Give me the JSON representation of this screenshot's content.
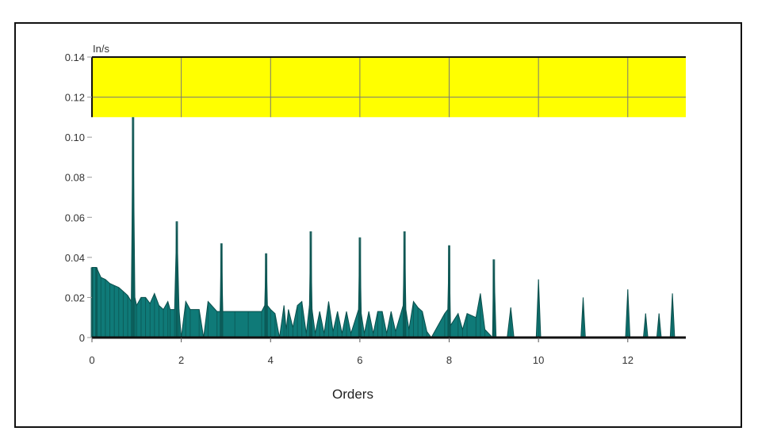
{
  "chart_data": {
    "type": "area",
    "unit_label": "In/s",
    "xlabel": "Orders",
    "ylabel": "",
    "xlim": [
      0,
      13.3
    ],
    "ylim": [
      0,
      0.14
    ],
    "xticks": [
      "0",
      "2",
      "4",
      "6",
      "8",
      "10",
      "12"
    ],
    "yticks": [
      "0",
      "0.02",
      "0.04",
      "0.06",
      "0.08",
      "0.10",
      "0.12",
      "0.14"
    ],
    "grid": true,
    "alarm_band": {
      "from": 0.11,
      "to": 0.14,
      "color": "#ffff00"
    },
    "series_color": "#0f7a78",
    "points": [
      [
        0,
        0.035
      ],
      [
        0.1,
        0.035
      ],
      [
        0.2,
        0.03
      ],
      [
        0.3,
        0.029
      ],
      [
        0.4,
        0.027
      ],
      [
        0.5,
        0.026
      ],
      [
        0.6,
        0.025
      ],
      [
        0.7,
        0.023
      ],
      [
        0.8,
        0.021
      ],
      [
        0.88,
        0.018
      ],
      [
        0.92,
        0.11
      ],
      [
        0.96,
        0.02
      ],
      [
        1.0,
        0.016
      ],
      [
        1.1,
        0.02
      ],
      [
        1.2,
        0.02
      ],
      [
        1.3,
        0.017
      ],
      [
        1.4,
        0.022
      ],
      [
        1.5,
        0.016
      ],
      [
        1.6,
        0.014
      ],
      [
        1.7,
        0.018
      ],
      [
        1.75,
        0.014
      ],
      [
        1.85,
        0.014
      ],
      [
        1.9,
        0.058
      ],
      [
        1.95,
        0.014
      ],
      [
        2.0,
        0.0
      ],
      [
        2.1,
        0.018
      ],
      [
        2.2,
        0.014
      ],
      [
        2.4,
        0.014
      ],
      [
        2.5,
        0.0
      ],
      [
        2.6,
        0.018
      ],
      [
        2.8,
        0.013
      ],
      [
        2.87,
        0.013
      ],
      [
        2.9,
        0.047
      ],
      [
        2.93,
        0.013
      ],
      [
        3.2,
        0.013
      ],
      [
        3.5,
        0.013
      ],
      [
        3.8,
        0.013
      ],
      [
        3.87,
        0.016
      ],
      [
        3.9,
        0.042
      ],
      [
        3.93,
        0.016
      ],
      [
        4.0,
        0.014
      ],
      [
        4.1,
        0.012
      ],
      [
        4.2,
        0.0
      ],
      [
        4.3,
        0.016
      ],
      [
        4.35,
        0.004
      ],
      [
        4.4,
        0.014
      ],
      [
        4.5,
        0.005
      ],
      [
        4.6,
        0.016
      ],
      [
        4.7,
        0.018
      ],
      [
        4.8,
        0.002
      ],
      [
        4.87,
        0.016
      ],
      [
        4.9,
        0.053
      ],
      [
        4.93,
        0.014
      ],
      [
        5.0,
        0.002
      ],
      [
        5.1,
        0.013
      ],
      [
        5.2,
        0.002
      ],
      [
        5.3,
        0.018
      ],
      [
        5.4,
        0.003
      ],
      [
        5.5,
        0.013
      ],
      [
        5.6,
        0.002
      ],
      [
        5.7,
        0.013
      ],
      [
        5.8,
        0.002
      ],
      [
        5.97,
        0.014
      ],
      [
        6.0,
        0.05
      ],
      [
        6.03,
        0.012
      ],
      [
        6.1,
        0.002
      ],
      [
        6.2,
        0.013
      ],
      [
        6.3,
        0.002
      ],
      [
        6.4,
        0.013
      ],
      [
        6.5,
        0.013
      ],
      [
        6.6,
        0.002
      ],
      [
        6.7,
        0.013
      ],
      [
        6.8,
        0.003
      ],
      [
        6.97,
        0.016
      ],
      [
        7.0,
        0.053
      ],
      [
        7.03,
        0.014
      ],
      [
        7.1,
        0.004
      ],
      [
        7.2,
        0.018
      ],
      [
        7.3,
        0.015
      ],
      [
        7.4,
        0.013
      ],
      [
        7.5,
        0.003
      ],
      [
        7.6,
        0.0
      ],
      [
        7.9,
        0.012
      ],
      [
        7.97,
        0.014
      ],
      [
        8.0,
        0.046
      ],
      [
        8.03,
        0.006
      ],
      [
        8.2,
        0.012
      ],
      [
        8.3,
        0.004
      ],
      [
        8.4,
        0.012
      ],
      [
        8.6,
        0.01
      ],
      [
        8.7,
        0.022
      ],
      [
        8.8,
        0.004
      ],
      [
        8.97,
        0.0
      ],
      [
        9.0,
        0.039
      ],
      [
        9.05,
        0.0
      ],
      [
        9.3,
        0.0
      ],
      [
        9.38,
        0.015
      ],
      [
        9.45,
        0.0
      ],
      [
        9.95,
        0.0
      ],
      [
        10.0,
        0.029
      ],
      [
        10.05,
        0.0
      ],
      [
        10.95,
        0.0
      ],
      [
        11.0,
        0.02
      ],
      [
        11.05,
        0.0
      ],
      [
        11.95,
        0.0
      ],
      [
        12.0,
        0.024
      ],
      [
        12.05,
        0.0
      ],
      [
        12.35,
        0.0
      ],
      [
        12.4,
        0.012
      ],
      [
        12.45,
        0.0
      ],
      [
        12.65,
        0.0
      ],
      [
        12.7,
        0.012
      ],
      [
        12.75,
        0.0
      ],
      [
        12.95,
        0.0
      ],
      [
        13.0,
        0.022
      ],
      [
        13.05,
        0.0
      ]
    ]
  }
}
